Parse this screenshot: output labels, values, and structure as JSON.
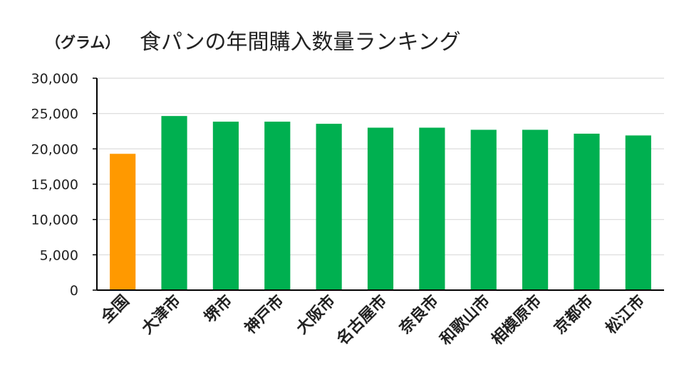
{
  "chart_data": {
    "type": "bar",
    "title": "食パンの年間購入数量ランキング",
    "unit_label": "（グラム）",
    "categories": [
      "全国",
      "大津市",
      "堺市",
      "神戸市",
      "大阪市",
      "名古屋市",
      "奈良市",
      "和歌山市",
      "相模原市",
      "京都市",
      "松江市"
    ],
    "values": [
      19300,
      24650,
      23850,
      23850,
      23550,
      23000,
      23000,
      22700,
      22700,
      22150,
      21900
    ],
    "highlight_index": 0,
    "ylim": [
      0,
      30000
    ],
    "yticks": [
      0,
      5000,
      10000,
      15000,
      20000,
      25000,
      30000
    ],
    "ytick_labels": [
      "0",
      "5,000",
      "10,000",
      "15,000",
      "20,000",
      "25,000",
      "30,000"
    ],
    "xlabel": "",
    "ylabel": "",
    "grid": true,
    "legend": "none",
    "colors": {
      "highlight": "#FF9900",
      "default": "#00B050",
      "grid": "#D9D9D9",
      "axis": "#000000",
      "text": "#222222"
    }
  }
}
